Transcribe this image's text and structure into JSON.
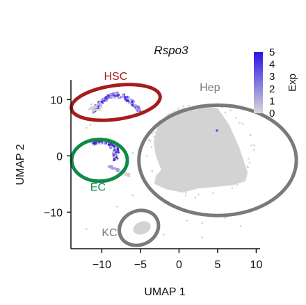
{
  "chart_data": {
    "type": "scatter",
    "title": "Rspo3",
    "xlabel": "UMAP 1",
    "ylabel": "UMAP 2",
    "xlim": [
      -14,
      10.5
    ],
    "ylim": [
      -16.5,
      13.5
    ],
    "xticks": [
      -10,
      -5,
      0,
      5,
      10
    ],
    "xtick_labels": [
      "−10",
      "−5",
      "0",
      "5",
      "10"
    ],
    "yticks": [
      10,
      0,
      -10
    ],
    "ytick_labels": [
      "10",
      "0",
      "−10"
    ],
    "grid": false,
    "colorbar": {
      "label": "Exp",
      "min": 0,
      "max": 5,
      "ticks": [
        "0",
        "1",
        "2",
        "3",
        "4",
        "5"
      ],
      "color_low": "#d9d9d9",
      "color_high": "#2a14e6"
    },
    "point_color_base": "#d3d3d3",
    "clusters": [
      {
        "label": "HSC",
        "center": [
          -8.2,
          9.5
        ],
        "radius": [
          5.8,
          3.0
        ],
        "color": "#a51d1d",
        "expression": "high"
      },
      {
        "label": "EC",
        "center": [
          -10.3,
          -0.8
        ],
        "radius": [
          3.6,
          3.7
        ],
        "color": "#0f8a48",
        "expression": "mixed"
      },
      {
        "label": "Hep",
        "center": [
          5.0,
          -0.8
        ],
        "radius": [
          10.2,
          9.8
        ],
        "color": "#7a7a7a",
        "expression": "none"
      },
      {
        "label": "KC",
        "center": [
          -5.2,
          -12.8
        ],
        "radius": [
          2.6,
          3.0
        ],
        "color": "#7a7a7a",
        "expression": "none"
      }
    ]
  }
}
